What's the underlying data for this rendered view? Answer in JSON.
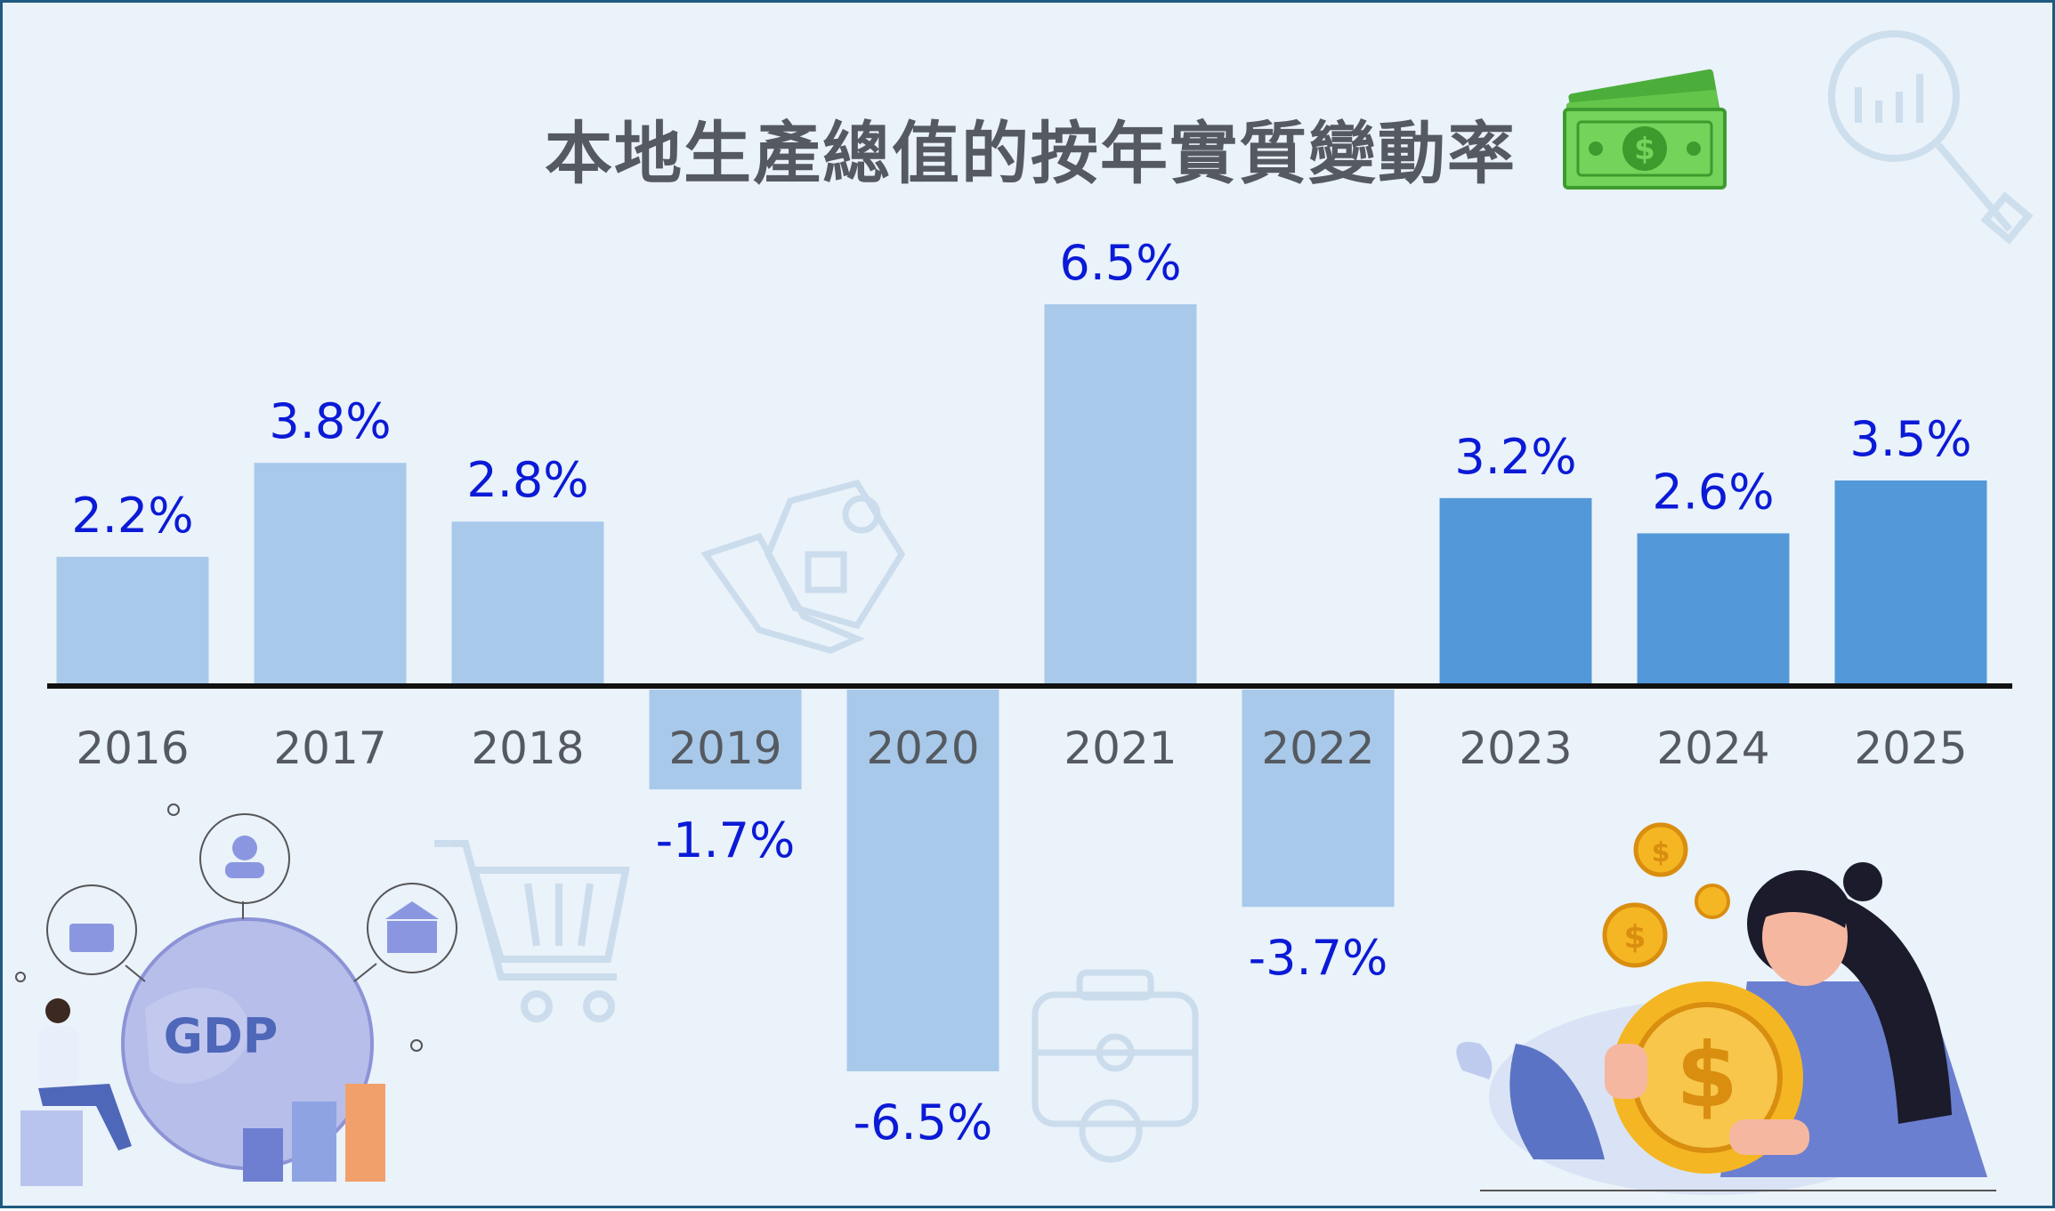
{
  "chart_data": {
    "type": "bar",
    "title": "本地生產總值的按年實質變動率",
    "categories": [
      "2016",
      "2017",
      "2018",
      "2019",
      "2020",
      "2021",
      "2022",
      "2023",
      "2024",
      "2025"
    ],
    "values": [
      2.2,
      3.8,
      2.8,
      -1.7,
      -6.5,
      6.5,
      -3.7,
      3.2,
      2.6,
      3.5
    ],
    "value_labels": [
      "2.2%",
      "3.8%",
      "2.8%",
      "-1.7%",
      "-6.5%",
      "6.5%",
      "-3.7%",
      "3.2%",
      "2.6%",
      "3.5%"
    ],
    "xlabel": "",
    "ylabel": "",
    "ylim": [
      -6.5,
      6.5
    ],
    "grid": false,
    "legend": "none",
    "colors": {
      "bar_light": "#a8c9ea",
      "bar_dark": "#5398d9",
      "label": "#0a1ad6",
      "category": "#555a60",
      "axis": "#111111"
    },
    "dark_bar_categories": [
      "2023",
      "2024",
      "2025"
    ]
  },
  "decorations": {
    "gdp_badge": "GDP",
    "icons": [
      "money-icon",
      "magnifier-chart-icon",
      "house-hand-icon",
      "shopping-cart-icon",
      "briefcase-icon",
      "gdp-globe-illustration",
      "woman-coin-illustration"
    ]
  }
}
